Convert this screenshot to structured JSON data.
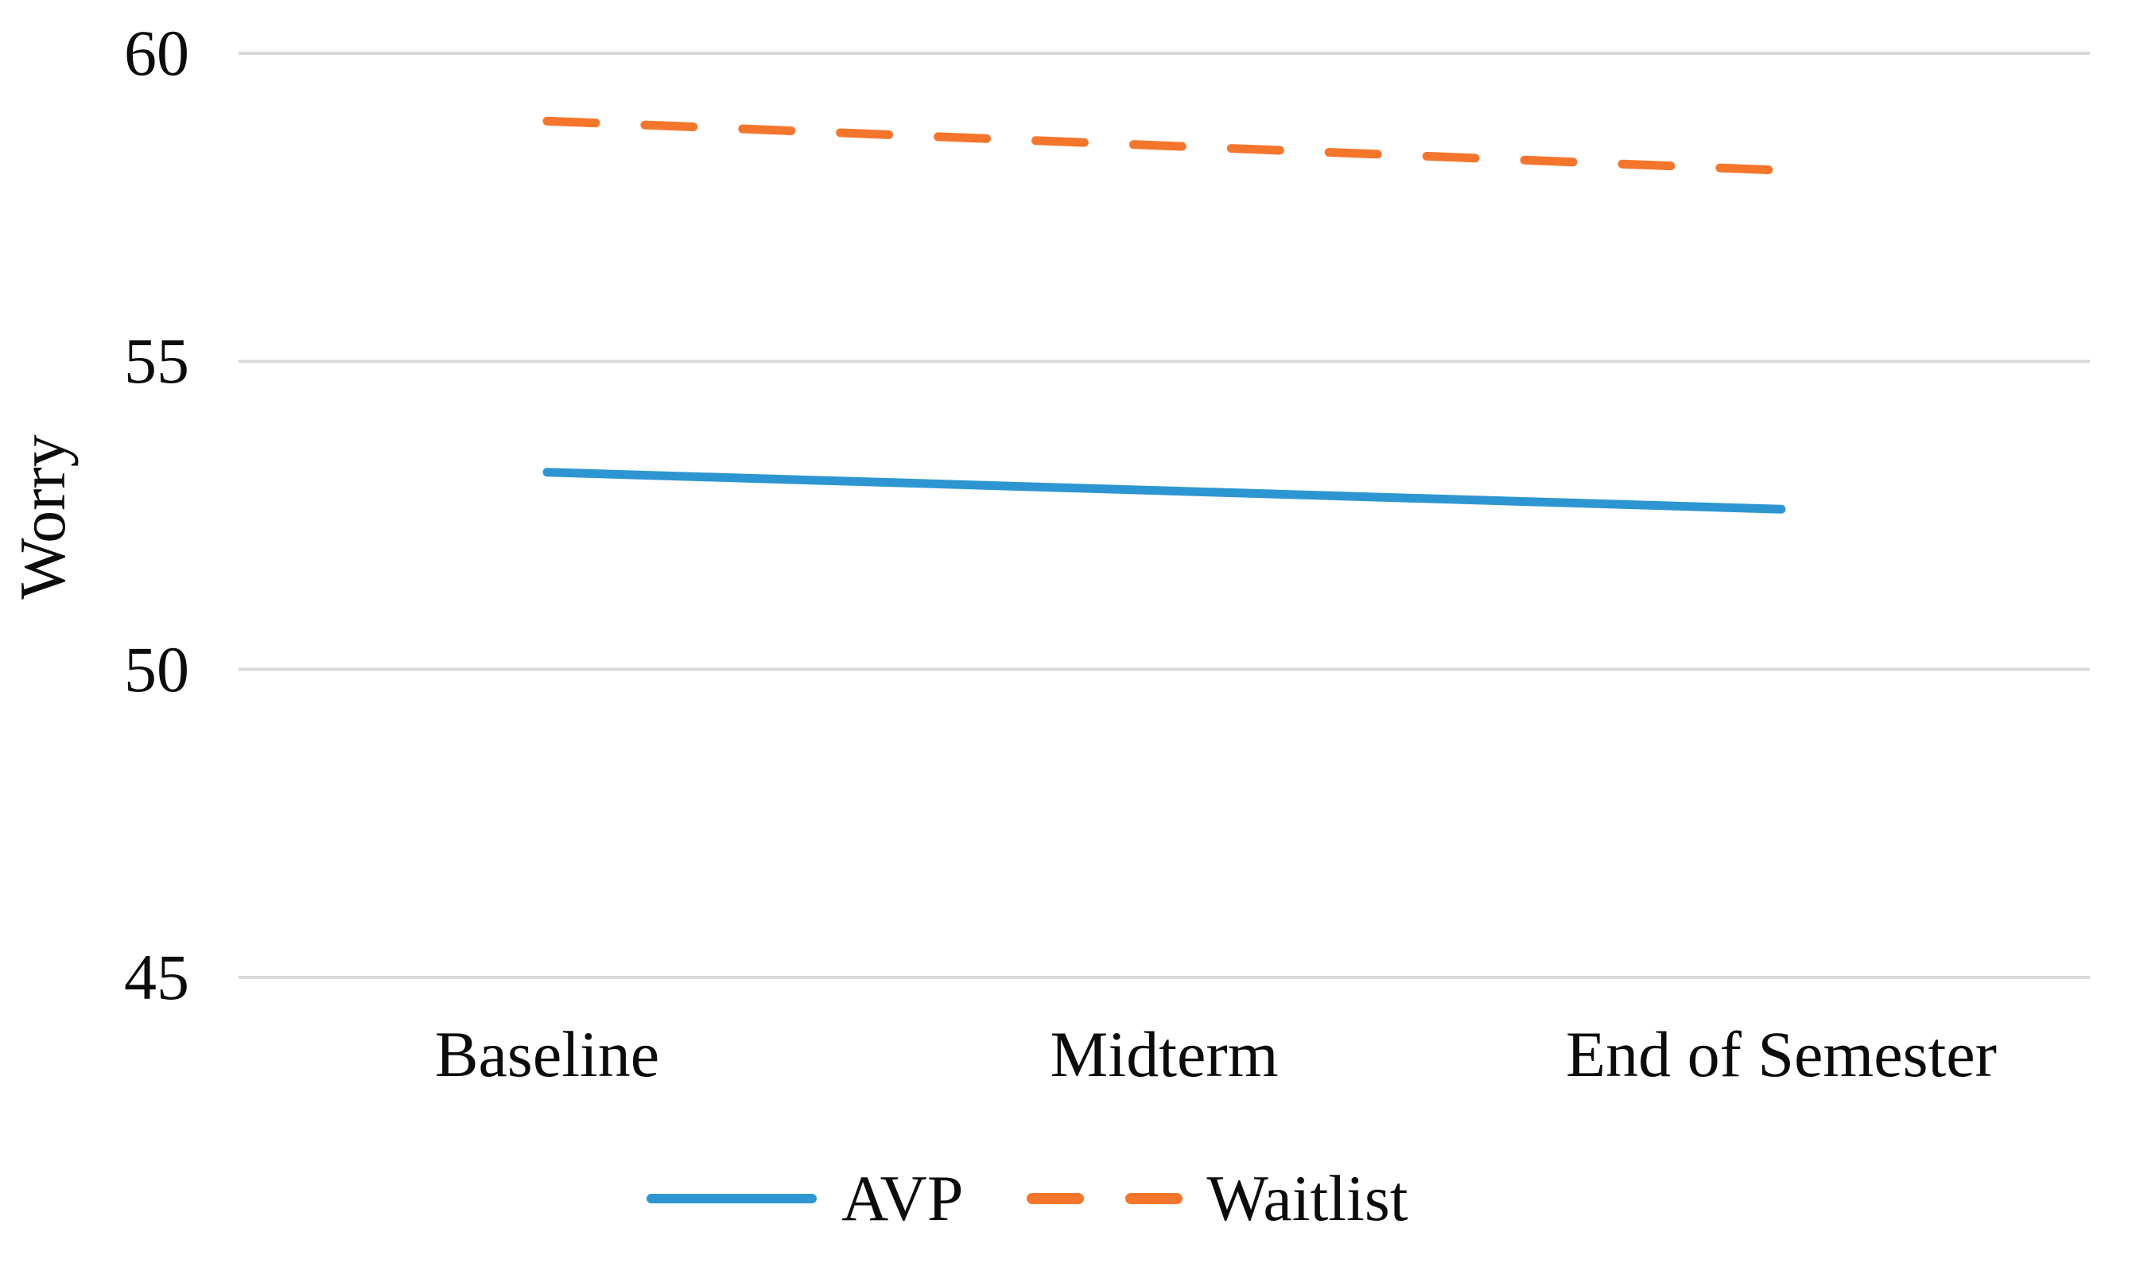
{
  "chart_data": {
    "type": "line",
    "categories": [
      "Baseline",
      "Midterm",
      "End of Semester"
    ],
    "series": [
      {
        "name": "AVP",
        "values": [
          53.2,
          52.9,
          52.6
        ],
        "color": "#2D96D2",
        "style": "solid"
      },
      {
        "name": "Waitlist",
        "values": [
          58.9,
          58.5,
          58.1
        ],
        "color": "#F4762C",
        "style": "dashed"
      }
    ],
    "title": "",
    "xlabel": "",
    "ylabel": "Worry",
    "ylim": [
      45,
      60
    ],
    "yticks": [
      45,
      50,
      55,
      60
    ],
    "grid": "horizontal-only",
    "gridline_color": "#D9D9D9",
    "legend_position": "bottom",
    "legend_entries": [
      "AVP",
      "Waitlist"
    ],
    "axis_text_color": "#0c0c0c"
  }
}
